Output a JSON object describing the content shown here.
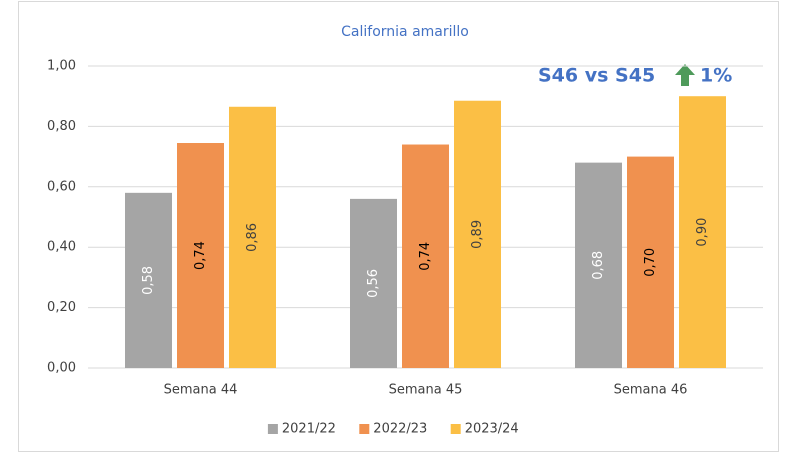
{
  "chart_data": {
    "type": "bar",
    "title": "California amarillo",
    "annotations": [
      "S46 vs S45",
      "1%"
    ],
    "categories": [
      "Semana 44",
      "Semana 45",
      "Semana 46"
    ],
    "series": [
      {
        "name": "2021/22",
        "color": "#a5a5a5",
        "values": [
          0.58,
          0.56,
          0.68
        ],
        "value_labels": [
          "0,58",
          "0,56",
          "0,68"
        ]
      },
      {
        "name": "2022/23",
        "color": "#f0914f",
        "values": [
          0.745,
          0.74,
          0.7
        ],
        "value_labels": [
          "0,74",
          "0,74",
          "0,70"
        ]
      },
      {
        "name": "2023/24",
        "color": "#fbbf45",
        "values": [
          0.865,
          0.885,
          0.9
        ],
        "value_labels": [
          "0,86",
          "0,89",
          "0,90"
        ]
      }
    ],
    "ylim": [
      0,
      1
    ],
    "yticks": [
      {
        "value": 0,
        "label": "0,00"
      },
      {
        "value": 0.2,
        "label": "0,20"
      },
      {
        "value": 0.4,
        "label": "0,40"
      },
      {
        "value": 0.6,
        "label": "0,60"
      },
      {
        "value": 0.8,
        "label": "0,80"
      },
      {
        "value": 1,
        "label": "1,00"
      }
    ],
    "grid": true,
    "legend": "bottom"
  }
}
